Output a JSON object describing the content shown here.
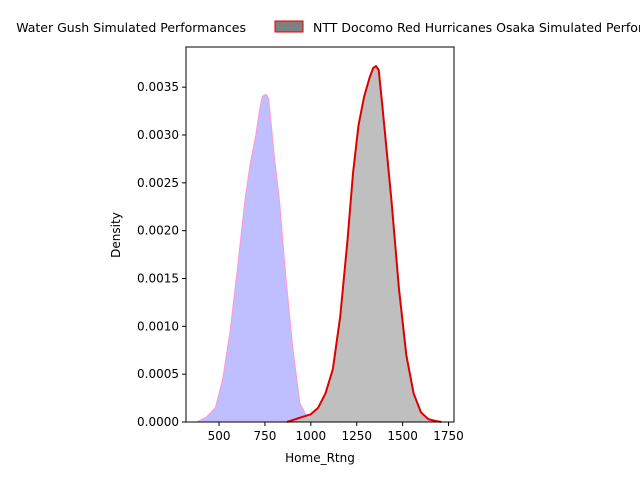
{
  "chart_data": {
    "type": "area",
    "xlabel": "Home_Rtng",
    "ylabel": "Density",
    "xlim": [
      320,
      1780
    ],
    "ylim": [
      0,
      0.00392
    ],
    "x_ticks": [
      500,
      750,
      1000,
      1250,
      1500,
      1750
    ],
    "y_ticks": [
      0.0,
      0.0005,
      0.001,
      0.0015,
      0.002,
      0.0025,
      0.003,
      0.0035
    ],
    "x_tick_labels": [
      "500",
      "750",
      "1000",
      "1250",
      "1500",
      "1750"
    ],
    "y_tick_labels": [
      "0.0000",
      "0.0005",
      "0.0010",
      "0.0015",
      "0.0020",
      "0.0025",
      "0.0030",
      "0.0035"
    ],
    "grid": false,
    "legend_position": "top-center",
    "series": [
      {
        "name": "Water Gush Simulated Performances",
        "fill_color": "#bfbfff",
        "line_color": "#ff99cc",
        "x": [
          380,
          430,
          480,
          520,
          560,
          600,
          640,
          670,
          700,
          720,
          735,
          748,
          760,
          770,
          780,
          800,
          830,
          860,
          900,
          940,
          980,
          1020,
          1060,
          1080
        ],
        "y": [
          0.0,
          5e-05,
          0.00015,
          0.00045,
          0.00095,
          0.0016,
          0.0023,
          0.0027,
          0.003,
          0.00325,
          0.0034,
          0.00342,
          0.00342,
          0.00338,
          0.0032,
          0.0028,
          0.0023,
          0.0016,
          0.0008,
          0.0002,
          5e-05,
          1e-05,
          0.0,
          0.0
        ]
      },
      {
        "name": "NTT Docomo Red Hurricanes Osaka Simulated Performances",
        "fill_color": "#bfbfbf",
        "line_color": "#dd0000",
        "x": [
          870,
          950,
          1000,
          1040,
          1080,
          1120,
          1160,
          1200,
          1230,
          1260,
          1290,
          1320,
          1340,
          1355,
          1370,
          1390,
          1410,
          1440,
          1480,
          1520,
          1560,
          1600,
          1640,
          1680,
          1710
        ],
        "y": [
          0.0,
          5e-05,
          8e-05,
          0.00015,
          0.0003,
          0.00055,
          0.0011,
          0.0019,
          0.0026,
          0.0031,
          0.0034,
          0.0036,
          0.0037,
          0.00372,
          0.00368,
          0.0033,
          0.0029,
          0.0023,
          0.0014,
          0.0007,
          0.0003,
          0.0001,
          3e-05,
          1e-05,
          0.0
        ]
      }
    ]
  }
}
